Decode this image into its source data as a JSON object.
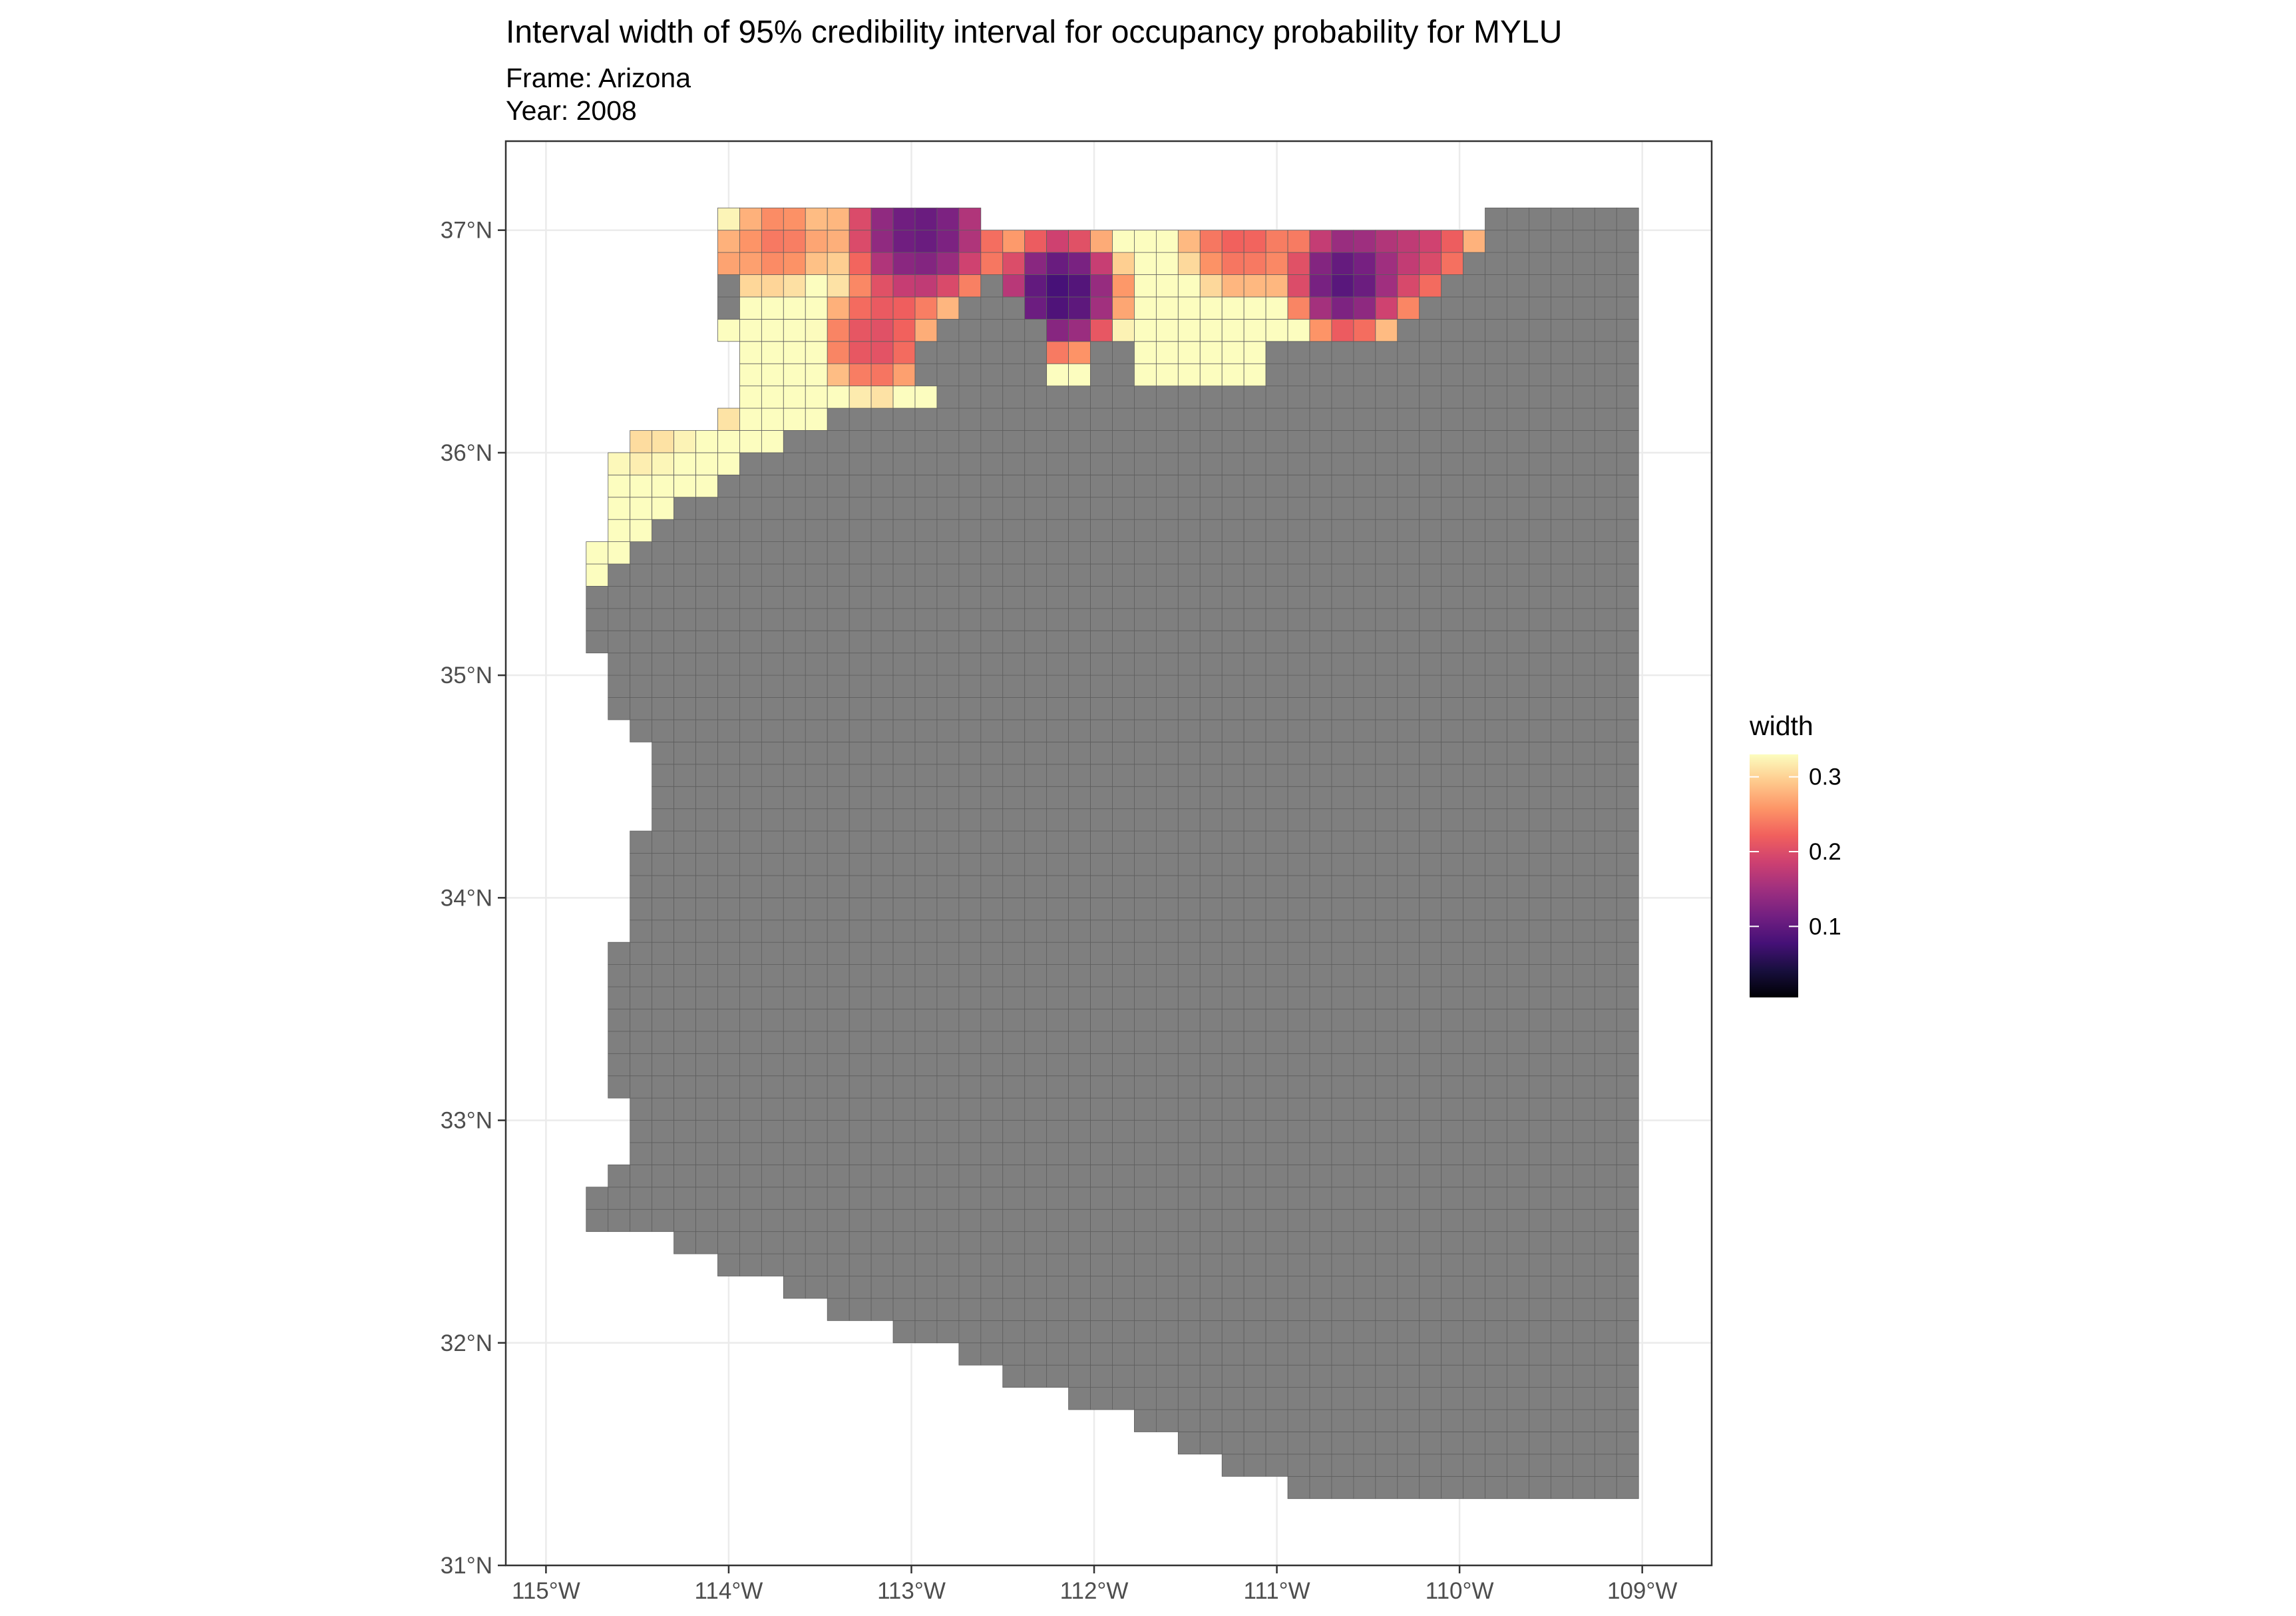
{
  "chart_data": {
    "type": "heatmap",
    "title": "Interval width of 95% credibility interval for occupancy probability for MYLU",
    "subtitle_lines": [
      "Frame: Arizona",
      "Year: 2008"
    ],
    "xlabel": "",
    "ylabel": "",
    "xlim": [
      -115.22,
      -108.62
    ],
    "ylim": [
      31.0,
      37.4
    ],
    "x_ticks": [
      -115,
      -114,
      -113,
      -112,
      -111,
      -110,
      -109
    ],
    "x_tick_labels": [
      "115°W",
      "114°W",
      "113°W",
      "112°W",
      "111°W",
      "110°W",
      "109°W"
    ],
    "y_ticks": [
      31,
      32,
      33,
      34,
      35,
      36,
      37
    ],
    "y_tick_labels": [
      "31°N",
      "32°N",
      "33°N",
      "34°N",
      "35°N",
      "36°N",
      "37°N"
    ],
    "grid": true,
    "cell_size_deg": [
      0.12,
      0.1
    ],
    "no_data_color": "#7f7f7f",
    "cell_border_color": "#5e5e5e",
    "legend": {
      "title": "width",
      "position": "right",
      "range": [
        0.005,
        0.33
      ],
      "ticks": [
        0.1,
        0.2,
        0.3
      ],
      "tick_labels": [
        "0.1",
        "0.2",
        "0.3"
      ],
      "palette": [
        "#000004",
        "#180f3e",
        "#451077",
        "#721f81",
        "#9f2f7f",
        "#cd4071",
        "#f1605d",
        "#fd9567",
        "#feca8d",
        "#fcfdbf"
      ]
    },
    "state_outline": [
      [
        -114.82,
        35.42
      ],
      [
        -114.72,
        35.6
      ],
      [
        -114.63,
        35.8
      ],
      [
        -114.6,
        36.0
      ],
      [
        -114.38,
        36.1
      ],
      [
        -114.1,
        36.12
      ],
      [
        -113.98,
        36.2
      ],
      [
        -114.0,
        36.55
      ],
      [
        -114.0,
        36.9
      ],
      [
        -114.02,
        37.05
      ],
      [
        -113.2,
        37.06
      ],
      [
        -112.0,
        37.04
      ],
      [
        -110.8,
        37.05
      ],
      [
        -109.85,
        37.05
      ],
      [
        -109.04,
        37.06
      ],
      [
        -109.05,
        36.2
      ],
      [
        -109.04,
        35.2
      ],
      [
        -109.05,
        34.2
      ],
      [
        -109.05,
        33.2
      ],
      [
        -109.05,
        32.2
      ],
      [
        -109.05,
        31.34
      ],
      [
        -110.1,
        31.33
      ],
      [
        -110.9,
        31.33
      ],
      [
        -111.55,
        31.55
      ],
      [
        -112.2,
        31.78
      ],
      [
        -112.75,
        31.94
      ],
      [
        -113.35,
        32.12
      ],
      [
        -113.85,
        32.3
      ],
      [
        -114.35,
        32.45
      ],
      [
        -114.8,
        32.5
      ],
      [
        -114.72,
        32.72
      ],
      [
        -114.58,
        32.8
      ],
      [
        -114.58,
        33.05
      ],
      [
        -114.7,
        33.35
      ],
      [
        -114.68,
        33.7
      ],
      [
        -114.52,
        33.95
      ],
      [
        -114.52,
        34.2
      ],
      [
        -114.36,
        34.46
      ],
      [
        -114.45,
        34.7
      ],
      [
        -114.62,
        34.87
      ],
      [
        -114.7,
        35.1
      ],
      [
        -114.8,
        35.2
      ]
    ],
    "hotspots": [
      {
        "lon": -114.62,
        "lat": 35.72,
        "value": 0.33,
        "spread": 0.28
      },
      {
        "lon": -114.48,
        "lat": 36.08,
        "value": 0.28,
        "spread": 0.22
      },
      {
        "lon": -114.1,
        "lat": 36.25,
        "value": 0.27,
        "spread": 0.2
      },
      {
        "lon": -114.05,
        "lat": 36.85,
        "value": 0.24,
        "spread": 0.16
      },
      {
        "lon": -113.72,
        "lat": 36.95,
        "value": 0.2,
        "spread": 0.2
      },
      {
        "lon": -113.2,
        "lat": 36.5,
        "value": 0.16,
        "spread": 0.22
      },
      {
        "lon": -111.2,
        "lat": 36.98,
        "value": 0.18,
        "spread": 0.25
      },
      {
        "lon": -110.3,
        "lat": 36.97,
        "value": 0.13,
        "spread": 0.3
      }
    ],
    "lowspots": [
      {
        "lon": -112.18,
        "lat": 36.72,
        "value": 0.008,
        "spread": 0.24
      },
      {
        "lon": -110.62,
        "lat": 36.78,
        "value": 0.02,
        "spread": 0.22
      },
      {
        "lon": -112.95,
        "lat": 37.0,
        "value": 0.04,
        "spread": 0.3
      }
    ],
    "observed_rows": [
      {
        "lat": 37.0,
        "lon_min": -114.02,
        "lon_max": -109.85
      },
      {
        "lat": 36.9,
        "lon_min": -114.08,
        "lon_max": -109.95
      },
      {
        "lat": 36.8,
        "lon_min": -114.05,
        "lon_max": -110.05
      },
      {
        "lat": 36.7,
        "lon_min": -114.03,
        "lon_max": -110.25
      },
      {
        "lat": 36.6,
        "lon_min": -114.0,
        "lon_max": -110.35
      },
      {
        "lat": 36.5,
        "lon_min": -114.1,
        "lon_max": -111.0
      },
      {
        "lat": 36.4,
        "lon_min": -114.05,
        "lon_max": -111.05
      },
      {
        "lat": 36.3,
        "lon_min": -114.05,
        "lon_max": -112.85
      },
      {
        "lat": 36.2,
        "lon_min": -114.6,
        "lon_max": -113.45
      },
      {
        "lat": 36.1,
        "lon_min": -114.7,
        "lon_max": -113.75
      },
      {
        "lat": 36.0,
        "lon_min": -114.78,
        "lon_max": -113.95
      },
      {
        "lat": 35.9,
        "lon_min": -114.8,
        "lon_max": -114.05
      },
      {
        "lat": 35.8,
        "lon_min": -114.8,
        "lon_max": -114.25
      },
      {
        "lat": 35.7,
        "lon_min": -114.8,
        "lon_max": -114.4
      },
      {
        "lat": 35.6,
        "lon_min": -114.8,
        "lon_max": -114.55
      },
      {
        "lat": 35.5,
        "lon_min": -114.78,
        "lon_max": -114.62
      }
    ],
    "observed_gaps": [
      {
        "lat": 36.7,
        "lon_min": -112.65,
        "lon_max": -112.5
      },
      {
        "lat": 36.6,
        "lon_min": -112.72,
        "lon_max": -112.4
      },
      {
        "lat": 36.5,
        "lon_min": -112.9,
        "lon_max": -112.3
      },
      {
        "lat": 36.4,
        "lon_min": -113.0,
        "lon_max": -112.3
      },
      {
        "lat": 36.4,
        "lon_min": -112.0,
        "lon_max": -111.8
      },
      {
        "lat": 36.7,
        "lon_min": -114.0,
        "lon_max": -113.95
      }
    ]
  }
}
